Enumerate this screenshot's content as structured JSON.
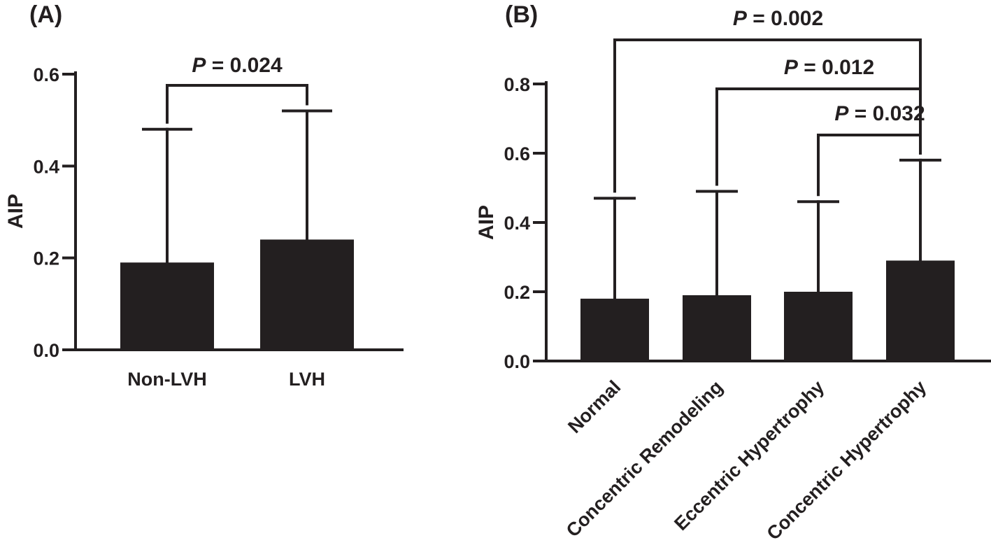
{
  "chart_data": [
    {
      "panel": "(A)",
      "type": "bar",
      "ylabel": "AIP",
      "ylim": [
        0,
        0.6
      ],
      "yticks": [
        "0.0",
        "0.2",
        "0.4",
        "0.6"
      ],
      "categories": [
        "Non-LVH",
        "LVH"
      ],
      "values": [
        0.19,
        0.24
      ],
      "errors_upper": [
        0.48,
        0.52
      ],
      "significance": [
        {
          "from": 0,
          "to": 1,
          "p_prefix": "P",
          "p_text": " = 0.024"
        }
      ]
    },
    {
      "panel": "(B)",
      "type": "bar",
      "ylabel": "AIP",
      "ylim": [
        0,
        0.8
      ],
      "yticks": [
        "0.0",
        "0.2",
        "0.4",
        "0.6",
        "0.8"
      ],
      "categories": [
        "Normal",
        "Concentric Remodeling",
        "Eccentric Hypertrophy",
        "Concentric Hypertrophy"
      ],
      "values": [
        0.18,
        0.19,
        0.2,
        0.29
      ],
      "errors_upper": [
        0.47,
        0.49,
        0.46,
        0.58
      ],
      "significance": [
        {
          "from": 0,
          "to": 3,
          "p_prefix": "P",
          "p_text": " = 0.002"
        },
        {
          "from": 1,
          "to": 3,
          "p_prefix": "P",
          "p_text": " = 0.012"
        },
        {
          "from": 2,
          "to": 3,
          "p_prefix": "P",
          "p_text": " = 0.032"
        }
      ]
    }
  ],
  "colors": {
    "ink": "#231f20",
    "background": "#ffffff"
  }
}
